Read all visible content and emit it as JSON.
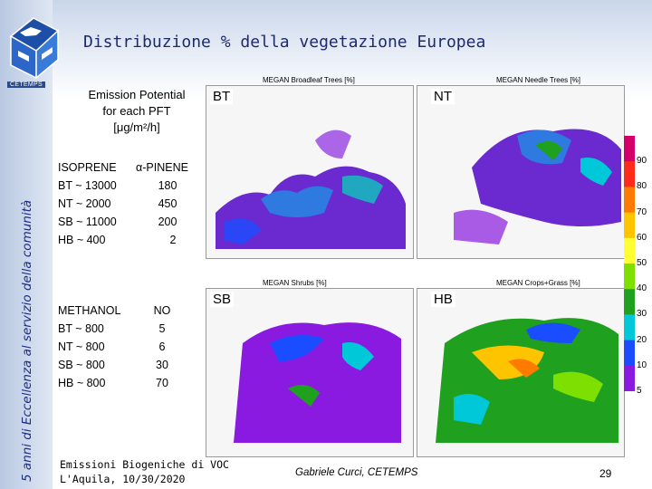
{
  "header": {
    "title": "Distribuzione % della vegetazione Europea",
    "logo_label": "CETEMPS",
    "vertical_caption": "5 anni di Eccellenza al servizio della comunità"
  },
  "emission": {
    "heading_line1": "Emission Potential",
    "heading_line2": "for each PFT",
    "heading_line3": "[μg/m²/h]",
    "isoprene_title": "ISOPRENE",
    "pinene_title": "α-PINENE",
    "methanol_title": "METHANOL",
    "no_title": "NO",
    "isoprene": [
      "BT ~ 13000",
      "NT ~ 2000",
      "SB ~ 11000",
      "HB ~ 400"
    ],
    "pinene": [
      "180",
      "450",
      "200",
      "2"
    ],
    "methanol": [
      "BT ~ 800",
      "NT ~ 800",
      "SB ~ 800",
      "HB ~ 800"
    ],
    "no": [
      "5",
      "6",
      "30",
      "70"
    ]
  },
  "maps": [
    {
      "title": "MEGAN Broadleaf Trees [%]",
      "tag": "BT"
    },
    {
      "title": "MEGAN Needle Trees [%]",
      "tag": "NT"
    },
    {
      "title": "MEGAN Shrubs [%]",
      "tag": "SB"
    },
    {
      "title": "MEGAN Crops+Grass [%]",
      "tag": "HB"
    }
  ],
  "colorbar": {
    "labels": [
      "90",
      "80",
      "70",
      "60",
      "50",
      "40",
      "30",
      "20",
      "10",
      "5"
    ],
    "colors": [
      "#d4006a",
      "#ff2a1a",
      "#ff7a00",
      "#ffc400",
      "#ffff33",
      "#7ee000",
      "#1fa01f",
      "#00c8d8",
      "#1a4dff",
      "#8a1adf"
    ]
  },
  "footer": {
    "left_line1": "Emissioni Biogeniche di VOC",
    "left_line2": "L'Aquila, 10/30/2020",
    "author": "Gabriele Curci, CETEMPS",
    "page": "29"
  }
}
